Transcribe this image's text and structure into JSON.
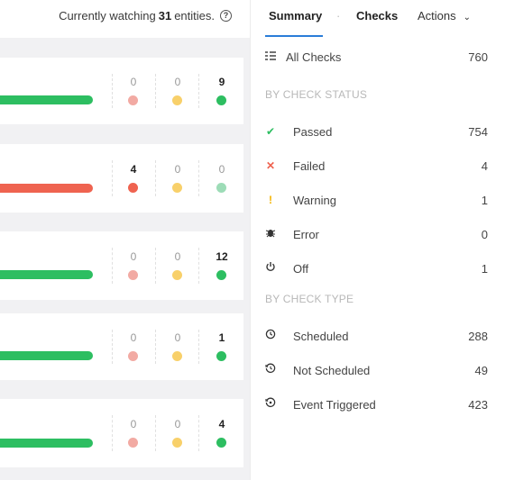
{
  "header": {
    "watch_prefix": "Currently watching",
    "watch_count": "31",
    "watch_suffix": "entities.",
    "help_glyph": "?"
  },
  "tabs": {
    "summary": "Summary",
    "separator": "·",
    "checks": "Checks",
    "actions": "Actions",
    "actions_chevron": "⌄"
  },
  "colors": {
    "green": "#2dbe61",
    "red": "#ef6350",
    "yellow": "#f8d06a",
    "pink": "#f2aaa3",
    "light_green": "#9ddcb7",
    "tab_accent": "#2a7dd8"
  },
  "entities": [
    {
      "status": "passing",
      "failed": "0",
      "warning": "0",
      "passed": "9",
      "strong": "passed"
    },
    {
      "status": "failing",
      "failed": "4",
      "warning": "0",
      "passed": "0",
      "strong": "failed"
    },
    {
      "status": "passing",
      "failed": "0",
      "warning": "0",
      "passed": "12",
      "strong": "passed"
    },
    {
      "status": "passing",
      "failed": "0",
      "warning": "0",
      "passed": "1",
      "strong": "passed"
    },
    {
      "status": "passing",
      "failed": "0",
      "warning": "0",
      "passed": "4",
      "strong": "passed"
    }
  ],
  "summary": {
    "all_checks": {
      "label": "All Checks",
      "value": "760",
      "icon": "list-icon"
    },
    "by_status_heading": "BY CHECK STATUS",
    "status": [
      {
        "label": "Passed",
        "value": "754",
        "icon": "check-icon"
      },
      {
        "label": "Failed",
        "value": "4",
        "icon": "x-icon"
      },
      {
        "label": "Warning",
        "value": "1",
        "icon": "exclamation-icon"
      },
      {
        "label": "Error",
        "value": "0",
        "icon": "bug-icon"
      },
      {
        "label": "Off",
        "value": "1",
        "icon": "power-icon"
      }
    ],
    "by_type_heading": "BY CHECK TYPE",
    "types": [
      {
        "label": "Scheduled",
        "value": "288",
        "icon": "clock-icon"
      },
      {
        "label": "Not Scheduled",
        "value": "49",
        "icon": "clock-off-icon"
      },
      {
        "label": "Event Triggered",
        "value": "423",
        "icon": "event-clock-icon"
      }
    ]
  }
}
